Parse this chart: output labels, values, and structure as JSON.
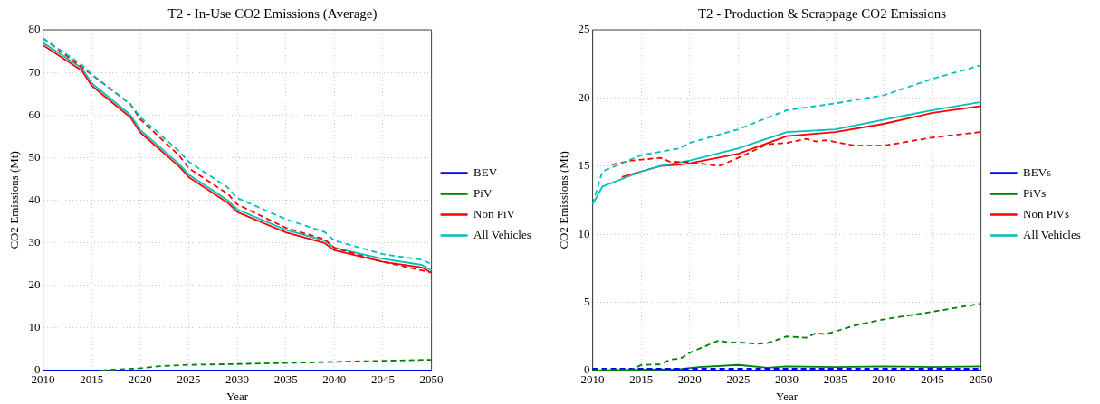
{
  "chart_data": [
    {
      "type": "line",
      "title": "T2 - In-Use CO2 Emissions (Average)",
      "xlabel": "Year",
      "ylabel": "CO2 Emissions (Mt)",
      "xlim": [
        2010,
        2050
      ],
      "xticks": [
        2010,
        2015,
        2020,
        2025,
        2030,
        2035,
        2040,
        2045,
        2050
      ],
      "ylim": [
        0,
        80
      ],
      "yticks": [
        0,
        10,
        20,
        30,
        40,
        50,
        60,
        70,
        80
      ],
      "grid": true,
      "legend": "right",
      "marker": "none",
      "series": [
        {
          "name": "BEV",
          "color": "#0000ff",
          "line_style": "solid",
          "x": [
            2010,
            2050
          ],
          "values": [
            0,
            0
          ]
        },
        {
          "name": "PiV",
          "color": "#008000",
          "line_style": "solid"
        },
        {
          "name": "Non PiV",
          "color": "#ff0000",
          "line_style": "solid",
          "x": [
            2010,
            2014,
            2015,
            2019,
            2020,
            2024,
            2025,
            2029,
            2030,
            2035,
            2039,
            2040,
            2045,
            2049,
            2050
          ],
          "values": [
            76.4,
            70.4,
            66.9,
            59.4,
            55.9,
            47.9,
            45.4,
            39.4,
            37.2,
            32.4,
            29.9,
            28.2,
            25.5,
            24.2,
            22.9
          ]
        },
        {
          "name": "All Vehicles",
          "color": "#00bfbf",
          "line_style": "solid",
          "x": [
            2010,
            2014,
            2015,
            2019,
            2020,
            2024,
            2025,
            2029,
            2030,
            2035,
            2039,
            2040,
            2045,
            2049,
            2050
          ],
          "values": [
            77,
            71,
            67.5,
            60,
            56.5,
            48.5,
            46,
            40,
            37.8,
            33,
            30.5,
            28.8,
            26.2,
            24.8,
            23.5
          ]
        },
        {
          "color": "#008000",
          "line_style": "dashed",
          "x": [
            2016,
            2020,
            2022,
            2025,
            2030,
            2040,
            2050
          ],
          "values": [
            0,
            0.5,
            1,
            1.3,
            1.5,
            2,
            2.5
          ]
        },
        {
          "color": "#ff0000",
          "line_style": "dashed",
          "x": [
            2010,
            2015,
            2019,
            2020,
            2024,
            2025,
            2029,
            2030,
            2035,
            2039,
            2040,
            2045,
            2050
          ],
          "values": [
            78,
            69.5,
            62.5,
            59,
            50.5,
            47.5,
            41.5,
            39,
            33.5,
            30.8,
            28.8,
            25.5,
            23
          ]
        },
        {
          "color": "#00bfbf",
          "line_style": "dashed",
          "x": [
            2010,
            2014,
            2015,
            2019,
            2020,
            2024,
            2025,
            2029,
            2030,
            2035,
            2039,
            2040,
            2045,
            2049,
            2050
          ],
          "values": [
            78,
            71.8,
            69.5,
            62.5,
            59.5,
            51.5,
            49,
            43,
            40.5,
            35.5,
            32.5,
            30.5,
            27.3,
            26,
            25
          ]
        }
      ]
    },
    {
      "type": "line",
      "title": "T2 - Production & Scrappage CO2 Emissions",
      "xlabel": "Year",
      "ylabel": "CO2 Emissions (Mt)",
      "xlim": [
        2010,
        2050
      ],
      "xticks": [
        2010,
        2015,
        2020,
        2025,
        2030,
        2035,
        2040,
        2045,
        2050
      ],
      "ylim": [
        0,
        25
      ],
      "yticks": [
        0,
        5,
        10,
        15,
        20,
        25
      ],
      "grid": true,
      "legend": "right",
      "marker": "none",
      "series": [
        {
          "name": "BEVs",
          "color": "#0000ff",
          "line_style": "solid",
          "x": [
            2010,
            2050
          ],
          "values": [
            0,
            0
          ]
        },
        {
          "name": "PiVs",
          "color": "#008000",
          "line_style": "solid",
          "x": [
            2010,
            2019,
            2021,
            2025,
            2028,
            2030,
            2035,
            2040,
            2045,
            2050
          ],
          "values": [
            0,
            0.1,
            0.25,
            0.4,
            0.2,
            0.3,
            0.25,
            0.3,
            0.25,
            0.3
          ]
        },
        {
          "name": "Non PiVs",
          "color": "#ff0000",
          "line_style": "solid",
          "x": [
            2013,
            2015,
            2017,
            2019,
            2020,
            2025,
            2030,
            2035,
            2040,
            2045,
            2050
          ],
          "values": [
            14.2,
            14.6,
            15,
            15.1,
            15.2,
            15.9,
            17.2,
            17.5,
            18.1,
            18.9,
            19.4
          ]
        },
        {
          "name": "All Vehicles",
          "color": "#00bfbf",
          "line_style": "solid",
          "x": [
            2010,
            2011,
            2015,
            2017,
            2020,
            2025,
            2030,
            2035,
            2040,
            2045,
            2050
          ],
          "values": [
            12.2,
            13.5,
            14.6,
            15,
            15.4,
            16.3,
            17.5,
            17.7,
            18.4,
            19.1,
            19.7
          ]
        },
        {
          "color": "#0000ff",
          "line_style": "dashed",
          "x": [
            2010,
            2050
          ],
          "values": [
            0.12,
            0.12
          ]
        },
        {
          "color": "#008000",
          "line_style": "dashed",
          "x": [
            2010,
            2014,
            2015,
            2017,
            2018,
            2019,
            2020,
            2023,
            2024,
            2025,
            2027,
            2028,
            2030,
            2032,
            2033,
            2034,
            2037,
            2040,
            2045,
            2050
          ],
          "values": [
            0,
            0.05,
            0.4,
            0.45,
            0.8,
            0.85,
            1.3,
            2.2,
            2.05,
            2.05,
            1.95,
            2,
            2.5,
            2.4,
            2.75,
            2.65,
            3.3,
            3.75,
            4.3,
            4.9
          ]
        },
        {
          "color": "#ff0000",
          "line_style": "dashed",
          "x": [
            2012,
            2014,
            2017,
            2018,
            2020,
            2023,
            2025,
            2028,
            2030,
            2032,
            2033,
            2034,
            2037,
            2040,
            2045,
            2050
          ],
          "values": [
            15.1,
            15.4,
            15.6,
            15.3,
            15.3,
            15,
            15.6,
            16.6,
            16.7,
            17,
            16.8,
            16.9,
            16.5,
            16.5,
            17.1,
            17.5
          ]
        },
        {
          "color": "#00bfbf",
          "line_style": "dashed",
          "x": [
            2010,
            2011,
            2015,
            2019,
            2020,
            2025,
            2030,
            2035,
            2040,
            2045,
            2050
          ],
          "values": [
            12.2,
            14.6,
            15.8,
            16.3,
            16.7,
            17.7,
            19.1,
            19.6,
            20.2,
            21.4,
            22.4
          ]
        }
      ]
    }
  ]
}
